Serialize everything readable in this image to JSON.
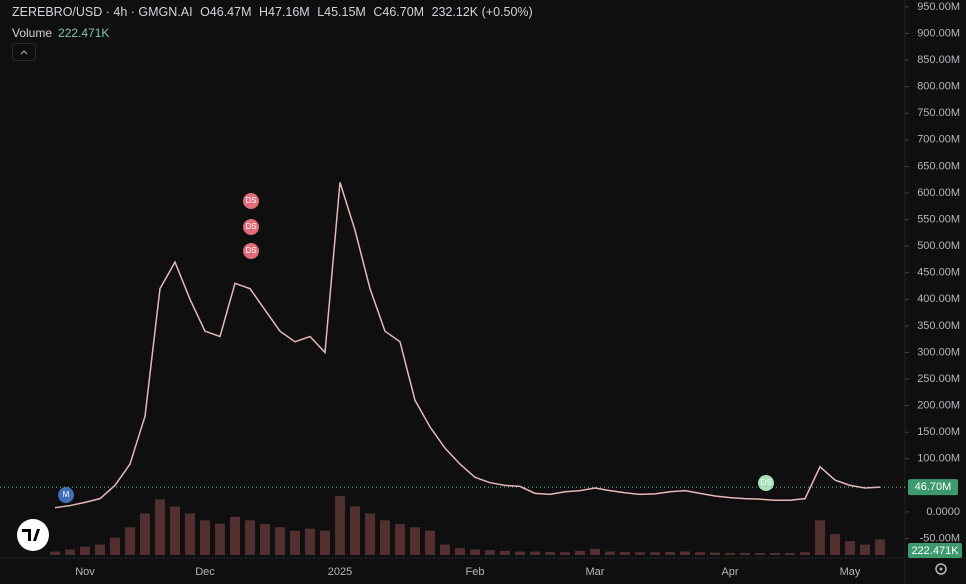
{
  "header": {
    "symbol": "ZEREBRO/USD · 4h · GMGN.AI",
    "open": "O46.47M",
    "high": "H47.16M",
    "low": "L45.15M",
    "close": "C46.70M",
    "change": "232.12K (+0.50%)",
    "volume_title": "Volume",
    "volume_value": "222.471K"
  },
  "chart_data": {
    "type": "line",
    "categories": [
      null,
      null,
      "Nov",
      null,
      null,
      null,
      null,
      null,
      null,
      null,
      "Dec",
      null,
      null,
      null,
      null,
      null,
      null,
      null,
      null,
      "2025",
      null,
      null,
      null,
      null,
      null,
      null,
      null,
      null,
      "Feb",
      null,
      null,
      null,
      null,
      null,
      null,
      null,
      "Mar",
      null,
      null,
      null,
      null,
      null,
      null,
      null,
      null,
      "Apr",
      null,
      null,
      null,
      null,
      null,
      null,
      null,
      "May",
      null,
      null
    ],
    "series": [
      {
        "name": "ZEREBRO/USD",
        "color": "#e6b8b8",
        "values": [
          8000000,
          12000000,
          18000000,
          25000000,
          50000000,
          90000000,
          180000000,
          420000000,
          470000000,
          400000000,
          340000000,
          330000000,
          430000000,
          420000000,
          380000000,
          340000000,
          320000000,
          330000000,
          300000000,
          620000000,
          530000000,
          420000000,
          340000000,
          320000000,
          210000000,
          160000000,
          120000000,
          90000000,
          65000000,
          55000000,
          50000000,
          48000000,
          35000000,
          33000000,
          38000000,
          40000000,
          45000000,
          40000000,
          36000000,
          33000000,
          34000000,
          38000000,
          40000000,
          35000000,
          30000000,
          27000000,
          25000000,
          24000000,
          22000000,
          22000000,
          25000000,
          85000000,
          60000000,
          50000000,
          45000000,
          46700000
        ]
      },
      {
        "name": "Volume",
        "color": "#5e3636",
        "axis": "y2",
        "values": [
          50000,
          80000,
          120000,
          150000,
          250000,
          400000,
          600000,
          800000,
          700000,
          600000,
          500000,
          450000,
          550000,
          500000,
          450000,
          400000,
          350000,
          380000,
          350000,
          850000,
          700000,
          600000,
          500000,
          450000,
          400000,
          350000,
          150000,
          100000,
          80000,
          70000,
          60000,
          50000,
          50000,
          45000,
          40000,
          60000,
          90000,
          50000,
          45000,
          40000,
          40000,
          45000,
          50000,
          40000,
          35000,
          30000,
          30000,
          30000,
          28000,
          28000,
          40000,
          500000,
          300000,
          200000,
          150000,
          222471
        ]
      }
    ],
    "ylim": [
      -81000000,
      963000000
    ],
    "yticks": [
      {
        "value": 950000000,
        "label": "950.00M"
      },
      {
        "value": 900000000,
        "label": "900.00M"
      },
      {
        "value": 850000000,
        "label": "850.00M"
      },
      {
        "value": 800000000,
        "label": "800.00M"
      },
      {
        "value": 750000000,
        "label": "750.00M"
      },
      {
        "value": 700000000,
        "label": "700.00M"
      },
      {
        "value": 650000000,
        "label": "650.00M"
      },
      {
        "value": 600000000,
        "label": "600.00M"
      },
      {
        "value": 550000000,
        "label": "550.00M"
      },
      {
        "value": 500000000,
        "label": "500.00M"
      },
      {
        "value": 450000000,
        "label": "450.00M"
      },
      {
        "value": 400000000,
        "label": "400.00M"
      },
      {
        "value": 350000000,
        "label": "350.00M"
      },
      {
        "value": 300000000,
        "label": "300.00M"
      },
      {
        "value": 250000000,
        "label": "250.00M"
      },
      {
        "value": 200000000,
        "label": "200.00M"
      },
      {
        "value": 150000000,
        "label": "150.00M"
      },
      {
        "value": 100000000,
        "label": "100.00M"
      },
      {
        "value": 0,
        "label": "0.0000"
      },
      {
        "value": -50000000,
        "label": "-50.00M"
      }
    ],
    "y2lim": [
      0,
      8000000
    ],
    "grid": false,
    "last_price_label": "46.70M",
    "last_volume_label": "222.471K",
    "annotations": [
      {
        "label": "M"
      },
      {
        "label": "DS"
      },
      {
        "label": "DS"
      },
      {
        "label": "DS"
      },
      {
        "label": "DS"
      }
    ]
  }
}
